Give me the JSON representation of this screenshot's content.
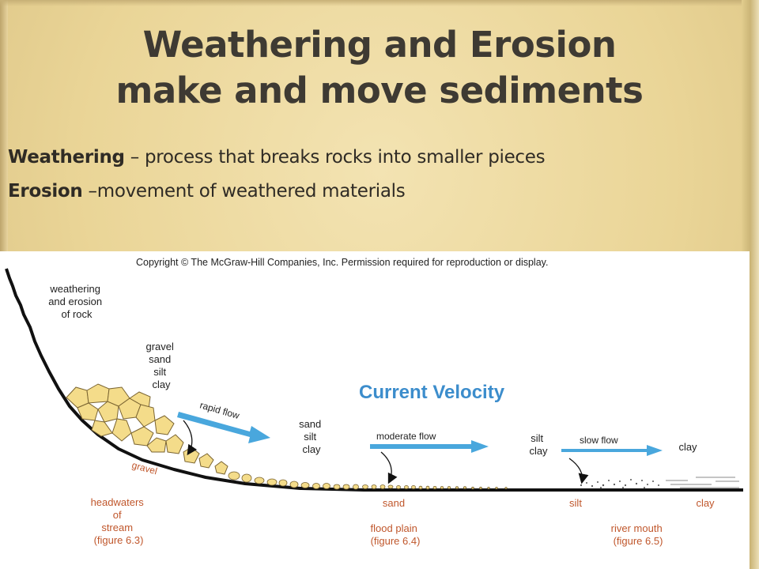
{
  "slide": {
    "title_line1": "Weathering and Erosion",
    "title_line2": "make and move sediments"
  },
  "definitions": [
    {
      "term": "Weathering",
      "separator": " – ",
      "text": "process that breaks rocks into smaller pieces"
    },
    {
      "term": "Erosion",
      "separator": " –",
      "text": "movement of weathered materials"
    }
  ],
  "diagram": {
    "copyright": "Copyright © The McGraw-Hill Companies, Inc. Permission required for reproduction or display.",
    "heading": "Current Velocity",
    "source_labels": [
      "weathering",
      "and erosion",
      "of rock"
    ],
    "headwater_sediments": [
      "gravel",
      "sand",
      "silt",
      "clay"
    ],
    "mid_sediments": [
      "sand",
      "silt",
      "clay"
    ],
    "low_sediments": [
      "silt",
      "clay"
    ],
    "end_sediment": "clay",
    "flows": {
      "rapid": "rapid flow",
      "moderate": "moderate flow",
      "slow": "slow flow"
    },
    "bed_label": "gravel",
    "deposits": [
      "sand",
      "silt",
      "clay"
    ],
    "zones": [
      {
        "lines": [
          "headwaters",
          "of",
          "stream",
          "(figure 6.3)"
        ]
      },
      {
        "lines": [
          "flood plain",
          "(figure 6.4)"
        ]
      },
      {
        "lines": [
          "river mouth",
          "(figure 6.5)"
        ]
      }
    ],
    "colors": {
      "heading": "#3c8dcc",
      "arrow": "#49a7dd",
      "rock_fill": "#f4dc8a",
      "rock_stroke": "#7a6431",
      "zone_label": "#c0572c",
      "ground": "#111111"
    }
  }
}
